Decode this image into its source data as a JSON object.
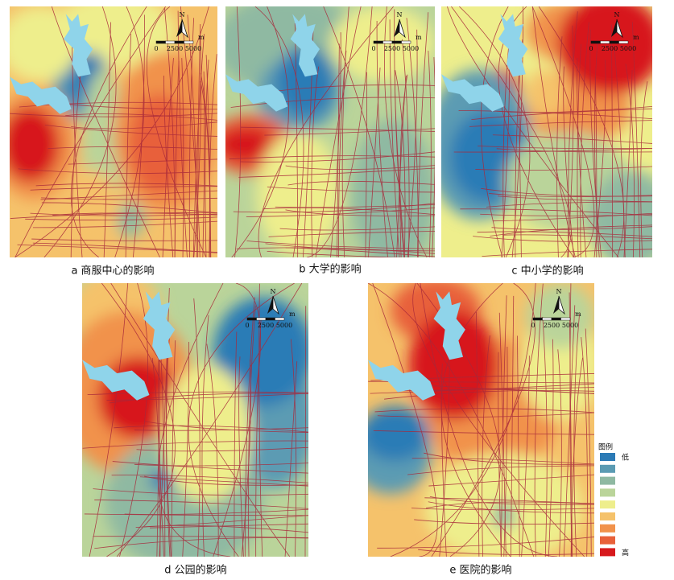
{
  "panels": [
    {
      "caption": "a 商服中心的影响",
      "north": "N",
      "scale": {
        "labels": [
          "0",
          "2500",
          "5000"
        ],
        "unit": "m"
      }
    },
    {
      "caption": "b 大学的影响",
      "north": "N",
      "scale": {
        "labels": [
          "0",
          "2500",
          "5000"
        ],
        "unit": "m"
      }
    },
    {
      "caption": "c 中小学的影响",
      "north": "N",
      "scale": {
        "labels": [
          "0",
          "2500",
          "5000"
        ],
        "unit": "m"
      }
    },
    {
      "caption": "d 公园的影响",
      "north": "N",
      "scale": {
        "labels": [
          "0",
          "2500",
          "5000"
        ],
        "unit": "m"
      }
    },
    {
      "caption": "e 医院的影响",
      "north": "N",
      "scale": {
        "labels": [
          "0",
          "2500",
          "5000"
        ],
        "unit": "m"
      }
    }
  ],
  "legend": {
    "title": "图例",
    "low": "低",
    "high": "高",
    "colors": [
      "#2c7bb6",
      "#5b9bb3",
      "#8fb9a2",
      "#bad49a",
      "#eeee8c",
      "#f5c26b",
      "#f1924b",
      "#e8613a",
      "#d7191c"
    ]
  }
}
